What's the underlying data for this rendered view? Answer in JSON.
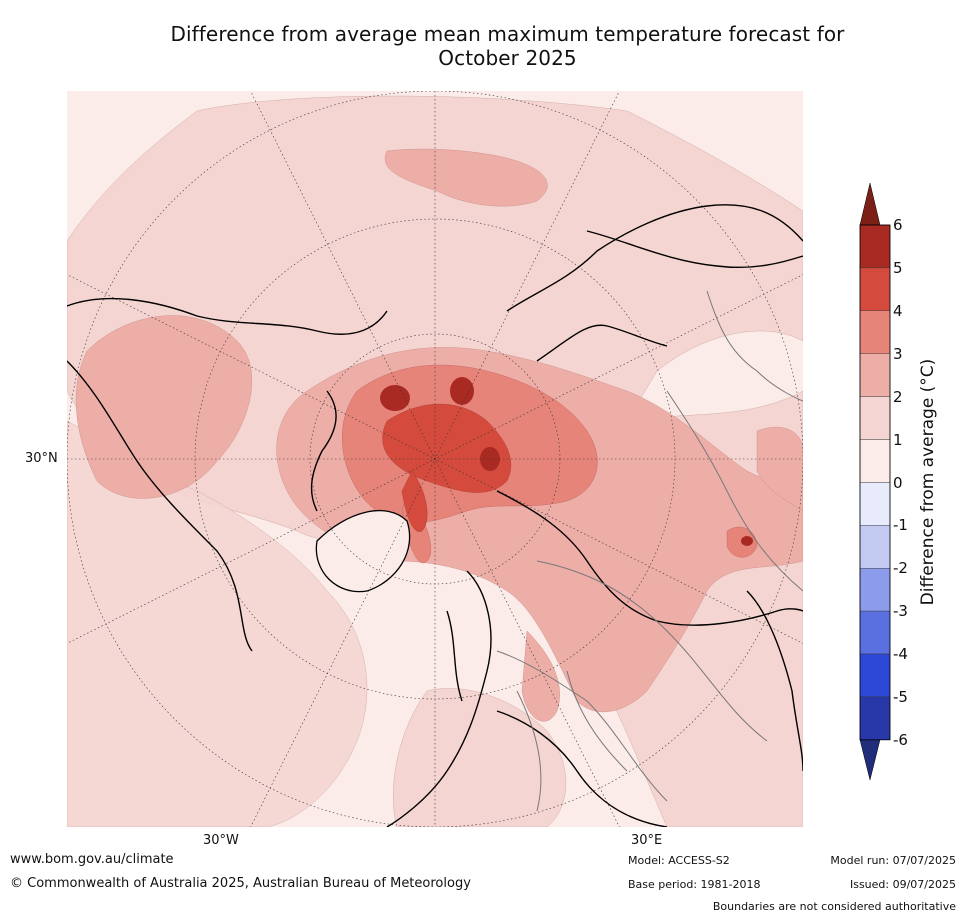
{
  "title_line1": "Difference from average mean maximum temperature forecast for",
  "title_line2": "October 2025",
  "map_labels": {
    "lat_30n": "30°N",
    "lon_30w": "30°W",
    "lon_30e": "30°E"
  },
  "colorbar": {
    "label": "Difference from average (°C)",
    "ticks": [
      "6",
      "5",
      "4",
      "3",
      "2",
      "1",
      "0",
      "-1",
      "-2",
      "-3",
      "-4",
      "-5",
      "-6"
    ],
    "colors": [
      "#7b1f17",
      "#a82a22",
      "#d44b3e",
      "#e6847a",
      "#eeaea8",
      "#f5d5d1",
      "#fbece9",
      "#e8ebfb",
      "#c3caf2",
      "#8c9bea",
      "#5b70e0",
      "#2d48d6",
      "#2838a8",
      "#1f2d7b"
    ]
  },
  "footer": {
    "website": "www.bom.gov.au/climate",
    "copyright": "© Commonwealth of Australia 2025, Australian Bureau of Meteorology",
    "model": "Model: ACCESS-S2",
    "base_period": "Base period: 1981-2018",
    "model_run": "Model run: 07/07/2025",
    "issued": "Issued: 09/07/2025",
    "disclaimer": "Boundaries are not considered authoritative"
  }
}
